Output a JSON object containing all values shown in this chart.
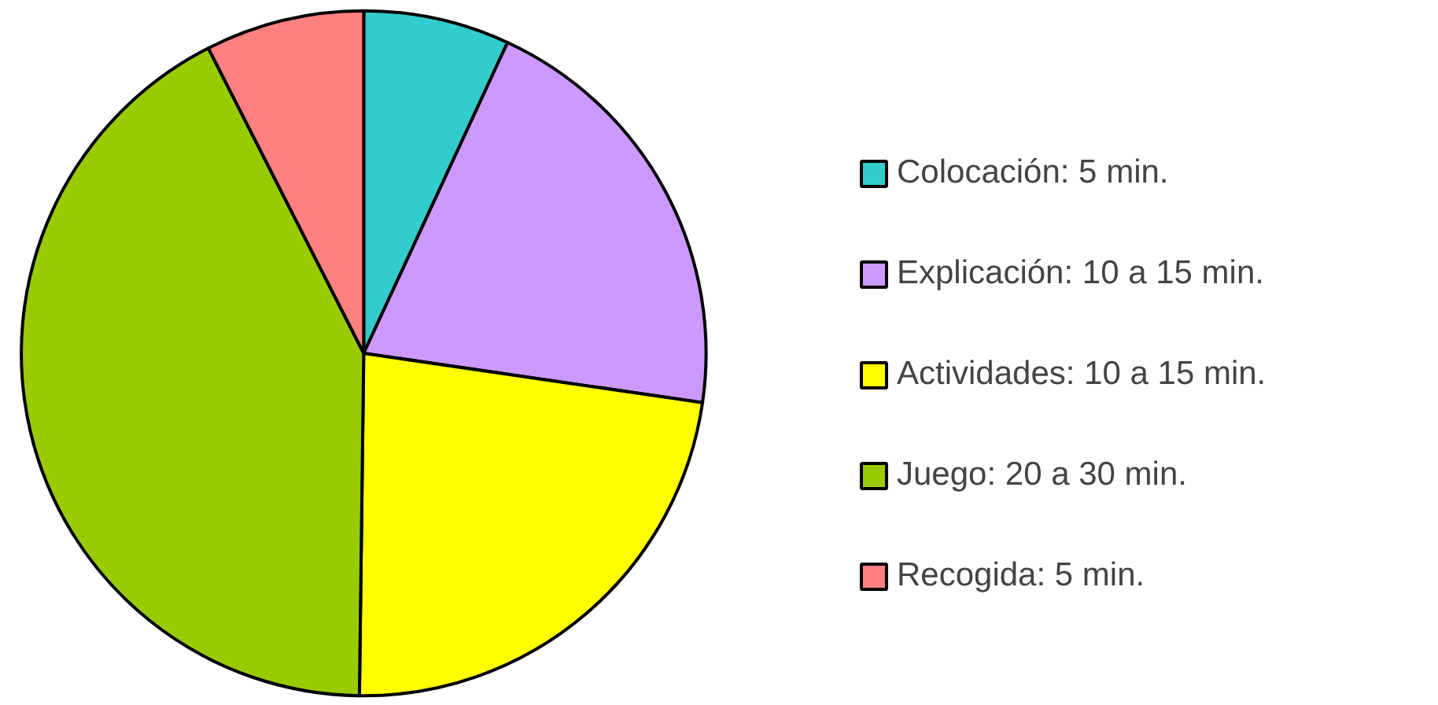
{
  "chart_data": {
    "type": "pie",
    "categories": [
      "Colocación: 5 min.",
      "Explicación: 10 a 15 min.",
      "Actividades: 10 a 15 min.",
      "Juego: 20 a 30 min.",
      "Recogida: 5 min."
    ],
    "values": [
      6.9,
      20.4,
      22.9,
      42.3,
      7.5
    ],
    "colors": [
      "#33cccc",
      "#cc99ff",
      "#ffff00",
      "#99cc00",
      "#ff8080"
    ],
    "legend": "right"
  }
}
